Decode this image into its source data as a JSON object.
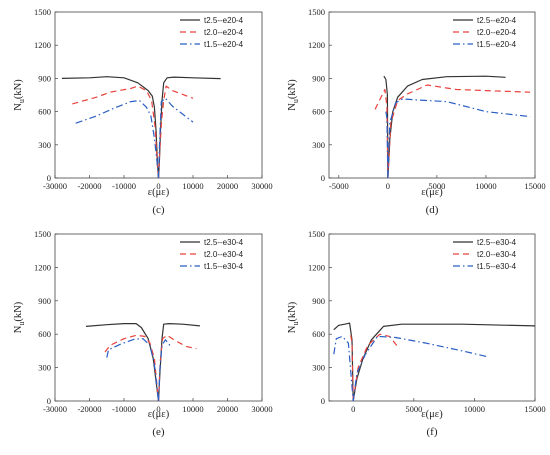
{
  "chart_data": [
    {
      "type": "line",
      "panel_label": "(c)",
      "xlabel": "ε(με)",
      "ylabel_main": "N",
      "ylabel_sub": "u",
      "ylabel_unit": "(kN)",
      "xlim": [
        -30000,
        30000
      ],
      "ylim": [
        0,
        1500
      ],
      "xticks": [
        "-30000",
        "-20000",
        "-10000",
        "0",
        "10000",
        "20000",
        "30000"
      ],
      "xtick_values": [
        -30000,
        -20000,
        -10000,
        0,
        10000,
        20000,
        30000
      ],
      "yticks": [
        "0",
        "300",
        "600",
        "900",
        "1200",
        "1500"
      ],
      "ytick_values": [
        0,
        300,
        600,
        900,
        1200,
        1500
      ],
      "legend_position": "top-right",
      "series": [
        {
          "name": "t2.5--e20-4",
          "color": "#333333",
          "dash": "solid",
          "branches": [
            [
              [
                -28000,
                900
              ],
              [
                -20000,
                905
              ],
              [
                -15000,
                915
              ],
              [
                -10000,
                905
              ],
              [
                -6000,
                860
              ],
              [
                -3000,
                790
              ],
              [
                -1800,
                740
              ],
              [
                -1200,
                640
              ],
              [
                -700,
                420
              ],
              [
                -300,
                130
              ],
              [
                0,
                0
              ]
            ],
            [
              [
                0,
                0
              ],
              [
                250,
                150
              ],
              [
                600,
                450
              ],
              [
                1000,
                700
              ],
              [
                1500,
                860
              ],
              [
                2500,
                905
              ],
              [
                4500,
                912
              ],
              [
                10000,
                905
              ],
              [
                18000,
                898
              ]
            ]
          ]
        },
        {
          "name": "t2.0--e20-4",
          "color": "#e8413c",
          "dash": "dashed",
          "branches": [
            [
              [
                -25000,
                670
              ],
              [
                -18000,
                730
              ],
              [
                -14000,
                775
              ],
              [
                -8000,
                810
              ],
              [
                -6000,
                830
              ],
              [
                -3500,
                790
              ],
              [
                -2000,
                700
              ],
              [
                -1000,
                460
              ],
              [
                -300,
                100
              ],
              [
                0,
                0
              ]
            ],
            [
              [
                0,
                0
              ],
              [
                300,
                200
              ],
              [
                900,
                520
              ],
              [
                1500,
                700
              ],
              [
                2200,
                830
              ],
              [
                4000,
                790
              ],
              [
                10000,
                720
              ]
            ]
          ]
        },
        {
          "name": "t1.5--e20-4",
          "color": "#2a5fc4",
          "dash": "dashdot",
          "branches": [
            [
              [
                -24000,
                495
              ],
              [
                -18000,
                560
              ],
              [
                -13000,
                630
              ],
              [
                -8000,
                690
              ],
              [
                -5500,
                700
              ],
              [
                -3500,
                640
              ],
              [
                -2200,
                560
              ],
              [
                -1200,
                360
              ],
              [
                -400,
                140
              ],
              [
                0,
                0
              ]
            ],
            [
              [
                0,
                0
              ],
              [
                300,
                300
              ],
              [
                800,
                690
              ],
              [
                2000,
                720
              ],
              [
                4000,
                650
              ],
              [
                10000,
                505
              ]
            ]
          ]
        }
      ]
    },
    {
      "type": "line",
      "panel_label": "(d)",
      "xlabel": "ε(με)",
      "ylabel_main": "N",
      "ylabel_sub": "u",
      "ylabel_unit": "(kN)",
      "xlim": [
        -6000,
        15000
      ],
      "ylim": [
        0,
        1500
      ],
      "xticks": [
        "-5000",
        "0",
        "5000",
        "10000",
        "15000"
      ],
      "xtick_values": [
        -5000,
        0,
        5000,
        10000,
        15000
      ],
      "yticks": [
        "0",
        "300",
        "600",
        "900",
        "1200",
        "1500"
      ],
      "ytick_values": [
        0,
        300,
        600,
        900,
        1200,
        1500
      ],
      "legend_position": "top-right",
      "series": [
        {
          "name": "t2.5--e20-4",
          "color": "#333333",
          "dash": "solid",
          "branches": [
            [
              [
                -400,
                920
              ],
              [
                -200,
                890
              ],
              [
                -50,
                750
              ],
              [
                0,
                0
              ]
            ],
            [
              [
                0,
                0
              ],
              [
                200,
                350
              ],
              [
                500,
                600
              ],
              [
                1000,
                730
              ],
              [
                2000,
                830
              ],
              [
                3500,
                890
              ],
              [
                6000,
                915
              ],
              [
                10000,
                920
              ],
              [
                12000,
                910
              ]
            ]
          ]
        },
        {
          "name": "t2.0--e20-4",
          "color": "#e8413c",
          "dash": "dashed",
          "branches": [
            [
              [
                -1300,
                620
              ],
              [
                -700,
                730
              ],
              [
                -300,
                800
              ],
              [
                -100,
                650
              ],
              [
                0,
                0
              ]
            ],
            [
              [
                0,
                0
              ],
              [
                300,
                500
              ],
              [
                1000,
                700
              ],
              [
                2000,
                760
              ],
              [
                3000,
                800
              ],
              [
                4000,
                840
              ],
              [
                7000,
                800
              ],
              [
                10000,
                790
              ],
              [
                14500,
                775
              ]
            ]
          ]
        },
        {
          "name": "t1.5--e20-4",
          "color": "#2a5fc4",
          "dash": "dashdot",
          "branches": [
            [
              [
                -200,
                600
              ],
              [
                -100,
                540
              ],
              [
                0,
                0
              ]
            ],
            [
              [
                0,
                0
              ],
              [
                200,
                500
              ],
              [
                800,
                680
              ],
              [
                1500,
                715
              ],
              [
                3000,
                705
              ],
              [
                6000,
                690
              ],
              [
                10000,
                600
              ],
              [
                14500,
                555
              ]
            ]
          ]
        }
      ]
    },
    {
      "type": "line",
      "panel_label": "(e)",
      "xlabel": "ε(με)",
      "ylabel_main": "N",
      "ylabel_sub": "u",
      "ylabel_unit": "(kN)",
      "xlim": [
        -30000,
        30000
      ],
      "ylim": [
        0,
        1500
      ],
      "xticks": [
        "-30000",
        "-20000",
        "-10000",
        "0",
        "10000",
        "20000",
        "30000"
      ],
      "xtick_values": [
        -30000,
        -20000,
        -10000,
        0,
        10000,
        20000,
        30000
      ],
      "yticks": [
        "0",
        "300",
        "600",
        "900",
        "1200",
        "1500"
      ],
      "ytick_values": [
        0,
        300,
        600,
        900,
        1200,
        1500
      ],
      "legend_position": "top-right",
      "series": [
        {
          "name": "t2.5--e30-4",
          "color": "#333333",
          "dash": "solid",
          "branches": [
            [
              [
                -21000,
                670
              ],
              [
                -15000,
                685
              ],
              [
                -10000,
                695
              ],
              [
                -6500,
                695
              ],
              [
                -5000,
                660
              ],
              [
                -3000,
                560
              ],
              [
                -1500,
                380
              ],
              [
                -600,
                150
              ],
              [
                0,
                0
              ]
            ],
            [
              [
                0,
                0
              ],
              [
                400,
                250
              ],
              [
                1000,
                560
              ],
              [
                1500,
                690
              ],
              [
                3000,
                695
              ],
              [
                7000,
                690
              ],
              [
                12000,
                675
              ]
            ]
          ]
        },
        {
          "name": "t2.0--e30-4",
          "color": "#e8413c",
          "dash": "dashed",
          "branches": [
            [
              [
                -15500,
                440
              ],
              [
                -14000,
                500
              ],
              [
                -10000,
                560
              ],
              [
                -6500,
                590
              ],
              [
                -4000,
                580
              ],
              [
                -2500,
                520
              ],
              [
                -1200,
                380
              ],
              [
                0,
                0
              ]
            ],
            [
              [
                0,
                0
              ],
              [
                500,
                350
              ],
              [
                1200,
                560
              ],
              [
                2500,
                590
              ],
              [
                5000,
                540
              ],
              [
                8000,
                490
              ],
              [
                11000,
                470
              ]
            ]
          ]
        },
        {
          "name": "t1.5--e30-4",
          "color": "#2a5fc4",
          "dash": "dashdot",
          "branches": [
            [
              [
                -15000,
                390
              ],
              [
                -14500,
                460
              ],
              [
                -11000,
                510
              ],
              [
                -7000,
                555
              ],
              [
                -4500,
                560
              ],
              [
                -2500,
                500
              ],
              [
                -1200,
                330
              ],
              [
                0,
                0
              ]
            ],
            [
              [
                0,
                0
              ],
              [
                400,
                280
              ],
              [
                1000,
                500
              ],
              [
                2000,
                550
              ],
              [
                3500,
                490
              ]
            ]
          ]
        }
      ]
    },
    {
      "type": "line",
      "panel_label": "(f)",
      "xlabel": "ε(με)",
      "ylabel_main": "N",
      "ylabel_sub": "u",
      "ylabel_unit": "(kN)",
      "xlim": [
        -2000,
        15000
      ],
      "ylim": [
        0,
        1500
      ],
      "xticks": [
        "0",
        "5000",
        "10000",
        "15000"
      ],
      "xtick_values": [
        0,
        5000,
        10000,
        15000
      ],
      "yticks": [
        "0",
        "300",
        "600",
        "900",
        "1200",
        "1500"
      ],
      "ytick_values": [
        0,
        300,
        600,
        900,
        1200,
        1500
      ],
      "legend_position": "top-right",
      "series": [
        {
          "name": "t2.5--e30-4",
          "color": "#333333",
          "dash": "solid",
          "branches": [
            [
              [
                -1600,
                640
              ],
              [
                -1200,
                680
              ],
              [
                -700,
                690
              ],
              [
                -300,
                700
              ],
              [
                -100,
                550
              ],
              [
                0,
                0
              ]
            ],
            [
              [
                0,
                0
              ],
              [
                300,
                200
              ],
              [
                800,
                380
              ],
              [
                1500,
                550
              ],
              [
                2500,
                670
              ],
              [
                4000,
                690
              ],
              [
                9000,
                690
              ],
              [
                15000,
                675
              ]
            ]
          ]
        },
        {
          "name": "t2.0--e30-4",
          "color": "#e8413c",
          "dash": "dashed",
          "branches": [
            [
              [
                -200,
                590
              ],
              [
                -100,
                520
              ],
              [
                0,
                0
              ]
            ],
            [
              [
                0,
                0
              ],
              [
                400,
                300
              ],
              [
                1200,
                500
              ],
              [
                2200,
                600
              ],
              [
                3000,
                580
              ],
              [
                3800,
                470
              ]
            ]
          ]
        },
        {
          "name": "t1.5--e30-4",
          "color": "#2a5fc4",
          "dash": "dashdot",
          "branches": [
            [
              [
                -1600,
                420
              ],
              [
                -1400,
                560
              ],
              [
                -900,
                580
              ],
              [
                -400,
                520
              ],
              [
                0,
                0
              ]
            ],
            [
              [
                0,
                0
              ],
              [
                300,
                250
              ],
              [
                1000,
                420
              ],
              [
                2000,
                580
              ],
              [
                3500,
                570
              ],
              [
                6000,
                520
              ],
              [
                9000,
                450
              ],
              [
                11000,
                400
              ]
            ]
          ]
        }
      ]
    }
  ]
}
